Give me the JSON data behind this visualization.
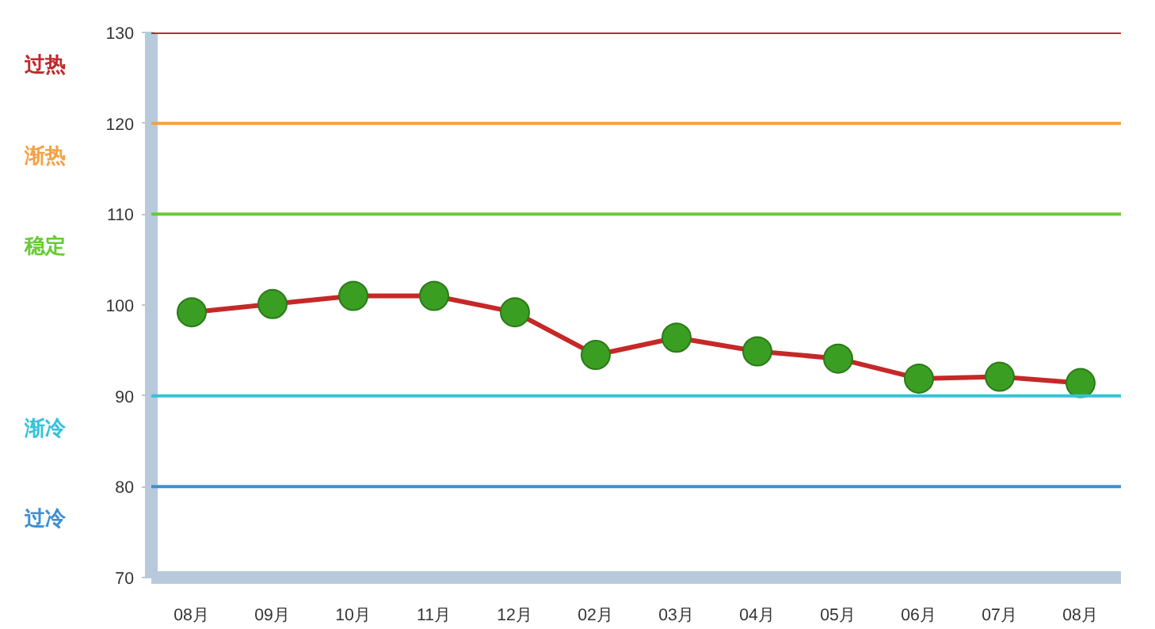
{
  "chart_data": {
    "type": "line",
    "categories": [
      "08月",
      "09月",
      "10月",
      "11月",
      "12月",
      "02月",
      "03月",
      "04月",
      "05月",
      "06月",
      "07月",
      "08月"
    ],
    "series": [
      {
        "color": "#c62828",
        "values": [
          99.2,
          100.1,
          101.0,
          101.0,
          99.2,
          94.5,
          96.4,
          94.9,
          94.1,
          91.9,
          92.1,
          91.4
        ]
      }
    ],
    "ylim": [
      70,
      130
    ],
    "yticks": [
      70,
      80,
      90,
      100,
      110,
      120,
      130
    ],
    "grid": false,
    "marker": "circle",
    "line_style": "solid",
    "ref_lines": [
      {
        "axis": "y",
        "value": 130,
        "label": "过热",
        "color": "#c0282b"
      },
      {
        "axis": "y",
        "value": 120,
        "label": "渐热",
        "color": "#f5a142"
      },
      {
        "axis": "y",
        "value": 110,
        "label": "稳定",
        "color": "#66cc33"
      },
      {
        "axis": "y",
        "value": 90,
        "label": "渐冷",
        "color": "#33c3d9"
      },
      {
        "axis": "y",
        "value": 80,
        "label": "过冷",
        "color": "#3d8fd1"
      }
    ]
  }
}
